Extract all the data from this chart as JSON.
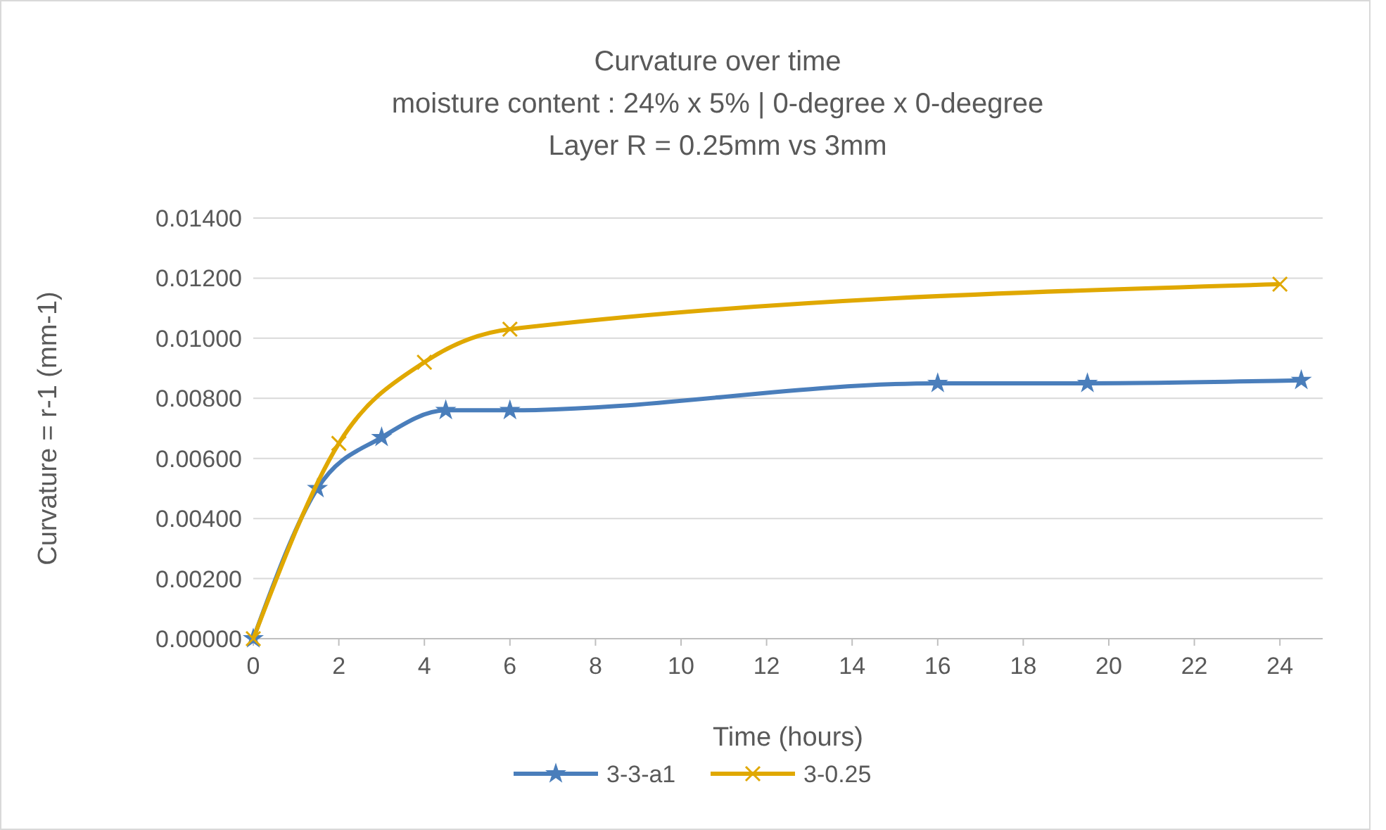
{
  "chart_data": {
    "type": "line",
    "title": "Curvature over time",
    "subtitle": "moisture content : 24%  x  5% | 0-degree x 0-deegree\nLayer R = 0.25mm vs 3mm",
    "xlabel": "Time (hours)",
    "ylabel": "Curvature = r-1 (mm-1)",
    "series": [
      {
        "name": "3-3-a1",
        "color": "#4a7ebb",
        "marker": "star",
        "x": [
          0,
          1.5,
          3,
          4.5,
          6,
          16,
          19.5,
          24.5
        ],
        "values": [
          0,
          0.005,
          0.0067,
          0.0076,
          0.0076,
          0.0085,
          0.0085,
          0.0086
        ]
      },
      {
        "name": "3-0.25",
        "color": "#e0a800",
        "marker": "cross",
        "x": [
          0,
          2,
          4,
          6,
          24
        ],
        "values": [
          0,
          0.0065,
          0.0092,
          0.0103,
          0.0118
        ]
      }
    ],
    "xlim": [
      0,
      25
    ],
    "xticks": [
      0,
      2,
      4,
      6,
      8,
      10,
      12,
      14,
      16,
      18,
      20,
      22,
      24
    ],
    "ylim": [
      0,
      0.014
    ],
    "yticks": [
      {
        "value": 0,
        "label": "0.00000"
      },
      {
        "value": 0.002,
        "label": "0.00200"
      },
      {
        "value": 0.004,
        "label": "0.00400"
      },
      {
        "value": 0.006,
        "label": "0.00600"
      },
      {
        "value": 0.008,
        "label": "0.00800"
      },
      {
        "value": 0.01,
        "label": "0.01000"
      },
      {
        "value": 0.012,
        "label": "0.01200"
      },
      {
        "value": 0.014,
        "label": "0.01400"
      }
    ],
    "grid": "y",
    "legend": "bottom",
    "line_style": "solid"
  }
}
